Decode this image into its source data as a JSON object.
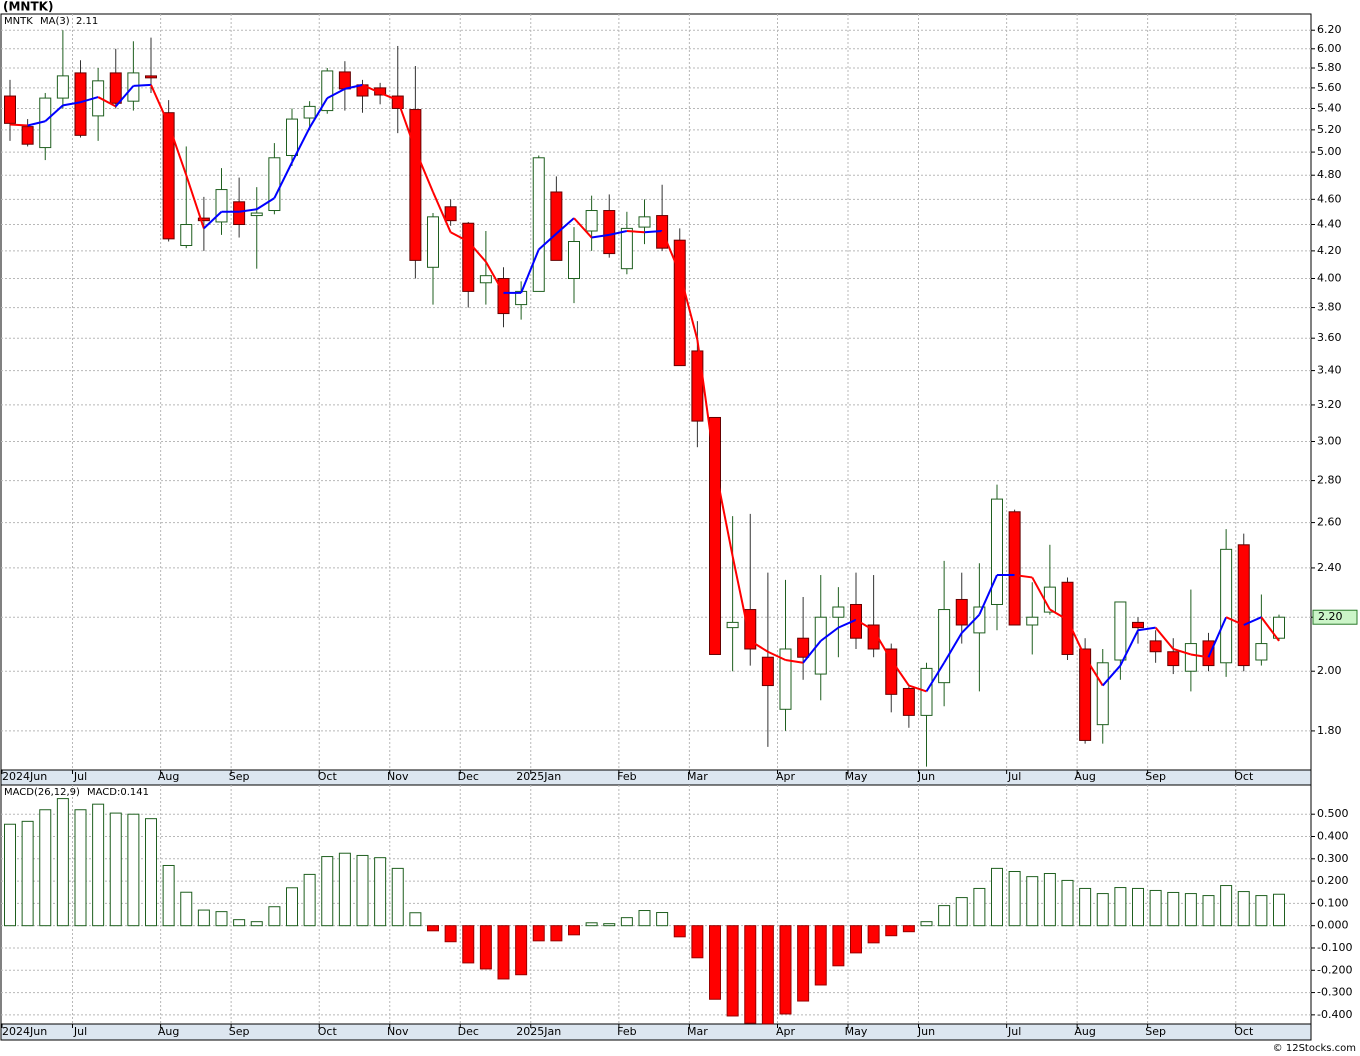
{
  "title": "(MNTK)",
  "footer": "© 12Stocks.com",
  "chart_data": [
    {
      "type": "candlestick",
      "symbol": "MNTK",
      "log_scale": true,
      "grid": true,
      "categories": [
        "2024Jun",
        null,
        null,
        null,
        "Jul",
        null,
        null,
        null,
        null,
        "Aug",
        null,
        null,
        null,
        "Sep",
        null,
        null,
        null,
        null,
        "Oct",
        null,
        null,
        null,
        "Nov",
        null,
        null,
        null,
        "Dec",
        null,
        null,
        null,
        "2025Jan",
        null,
        null,
        null,
        null,
        "Feb",
        null,
        null,
        null,
        "Mar",
        null,
        null,
        null,
        null,
        "Apr",
        null,
        null,
        null,
        "May",
        null,
        null,
        null,
        "Jun",
        null,
        null,
        null,
        null,
        "Jul",
        null,
        null,
        null,
        "Aug",
        null,
        null,
        null,
        "Sep",
        null,
        null,
        null,
        null,
        "Oct",
        null,
        null
      ],
      "open": [
        5.52,
        5.23,
        5.04,
        5.5,
        5.75,
        5.33,
        5.75,
        5.47,
        5.72,
        5.36,
        4.24,
        4.45,
        4.42,
        4.58,
        4.47,
        4.51,
        4.97,
        5.31,
        5.38,
        5.76,
        5.63,
        5.6,
        5.52,
        5.39,
        4.08,
        4.54,
        4.41,
        3.97,
        4.0,
        3.82,
        3.91,
        4.66,
        4.0,
        4.35,
        4.51,
        4.07,
        4.38,
        4.47,
        4.28,
        3.52,
        3.13,
        2.16,
        2.23,
        2.05,
        1.87,
        2.12,
        1.99,
        2.2,
        2.25,
        2.17,
        2.08,
        1.94,
        1.85,
        1.96,
        2.27,
        2.14,
        2.25,
        2.65,
        2.17,
        2.22,
        2.34,
        2.08,
        1.82,
        2.04,
        2.18,
        2.11,
        2.07,
        2.0,
        2.11,
        2.03,
        2.5,
        2.04,
        2.12
      ],
      "high": [
        5.68,
        5.3,
        5.55,
        6.2,
        5.88,
        5.8,
        6.0,
        6.08,
        6.12,
        5.48,
        5.05,
        4.62,
        4.86,
        4.78,
        4.7,
        5.08,
        5.4,
        5.47,
        5.8,
        5.87,
        5.68,
        5.65,
        6.03,
        5.82,
        4.49,
        4.6,
        4.42,
        4.35,
        4.08,
        3.98,
        4.97,
        4.79,
        4.38,
        4.63,
        4.64,
        4.5,
        4.6,
        4.72,
        4.37,
        3.71,
        3.13,
        2.63,
        2.64,
        2.38,
        2.35,
        2.28,
        2.37,
        2.32,
        2.38,
        2.37,
        2.1,
        1.95,
        2.03,
        2.43,
        2.38,
        2.42,
        2.78,
        2.66,
        2.34,
        2.5,
        2.36,
        2.12,
        2.08,
        2.26,
        2.2,
        2.15,
        2.12,
        2.31,
        2.14,
        2.57,
        2.55,
        2.29,
        2.21
      ],
      "low": [
        5.1,
        5.05,
        4.93,
        5.4,
        5.13,
        5.1,
        5.4,
        5.38,
        5.55,
        4.27,
        4.22,
        4.2,
        4.32,
        4.3,
        4.07,
        4.48,
        4.88,
        5.2,
        5.35,
        5.38,
        5.36,
        5.44,
        5.17,
        4.0,
        3.82,
        4.39,
        3.8,
        3.82,
        3.67,
        3.72,
        3.91,
        4.13,
        3.83,
        4.2,
        4.15,
        4.03,
        4.25,
        4.2,
        3.43,
        2.97,
        2.06,
        2.0,
        2.02,
        1.75,
        1.8,
        1.97,
        1.9,
        2.05,
        2.08,
        2.05,
        1.86,
        1.81,
        1.69,
        1.88,
        2.1,
        1.93,
        2.15,
        2.17,
        2.06,
        2.21,
        2.04,
        1.76,
        1.76,
        1.97,
        2.1,
        2.03,
        1.99,
        1.93,
        2.0,
        1.98,
        2.0,
        2.02,
        2.11
      ],
      "close": [
        5.26,
        5.07,
        5.5,
        5.72,
        5.15,
        5.67,
        5.45,
        5.75,
        5.7,
        4.29,
        4.4,
        4.43,
        4.68,
        4.4,
        4.49,
        4.95,
        5.3,
        5.42,
        5.77,
        5.59,
        5.52,
        5.53,
        5.4,
        4.13,
        4.46,
        4.43,
        3.91,
        4.02,
        3.76,
        3.91,
        4.95,
        4.13,
        4.27,
        4.51,
        4.18,
        4.37,
        4.46,
        4.22,
        3.43,
        3.11,
        2.06,
        2.18,
        2.08,
        1.95,
        2.08,
        2.05,
        2.2,
        2.24,
        2.12,
        2.08,
        1.92,
        1.85,
        2.01,
        2.23,
        2.17,
        2.24,
        2.71,
        2.17,
        2.2,
        2.32,
        2.06,
        1.77,
        2.03,
        2.26,
        2.16,
        2.07,
        2.02,
        2.1,
        2.02,
        2.48,
        2.02,
        2.1,
        2.2
      ],
      "up_color": "#1f5f1f",
      "down_color": "#ff0000",
      "ma": {
        "name": "MA(3)",
        "up_color": "#0000ff",
        "down_color": "#ff0000",
        "values": [
          5.25,
          5.24,
          5.28,
          5.43,
          5.46,
          5.51,
          5.42,
          5.62,
          5.63,
          5.25,
          4.8,
          4.37,
          4.5,
          4.5,
          4.52,
          4.61,
          4.91,
          5.22,
          5.5,
          5.59,
          5.63,
          5.55,
          5.48,
          5.02,
          4.66,
          4.34,
          4.27,
          4.12,
          3.9,
          3.9,
          4.21,
          4.33,
          4.45,
          4.3,
          4.32,
          4.35,
          4.34,
          4.35,
          4.04,
          3.59,
          2.87,
          2.45,
          2.11,
          2.07,
          2.04,
          2.03,
          2.11,
          2.16,
          2.19,
          2.15,
          2.04,
          1.95,
          1.93,
          2.03,
          2.14,
          2.21,
          2.37,
          2.37,
          2.36,
          2.23,
          2.19,
          2.05,
          1.95,
          2.02,
          2.15,
          2.16,
          2.08,
          2.06,
          2.05,
          2.2,
          2.17,
          2.2,
          2.11
        ]
      },
      "last_price": {
        "value": 2.2,
        "label": "2.20"
      },
      "ylim": [
        1.68,
        6.38
      ],
      "yticks": [
        {
          "value": 1.8,
          "label": "1.80"
        },
        {
          "value": 2.0,
          "label": "2.00"
        },
        {
          "value": 2.2,
          "label": "2.20"
        },
        {
          "value": 2.4,
          "label": "2.40"
        },
        {
          "value": 2.6,
          "label": "2.60"
        },
        {
          "value": 2.8,
          "label": "2.80"
        },
        {
          "value": 3.0,
          "label": "3.00"
        },
        {
          "value": 3.2,
          "label": "3.20"
        },
        {
          "value": 3.4,
          "label": "3.40"
        },
        {
          "value": 3.6,
          "label": "3.60"
        },
        {
          "value": 3.8,
          "label": "3.80"
        },
        {
          "value": 4.0,
          "label": "4.00"
        },
        {
          "value": 4.2,
          "label": "4.20"
        },
        {
          "value": 4.4,
          "label": "4.40"
        },
        {
          "value": 4.6,
          "label": "4.60"
        },
        {
          "value": 4.8,
          "label": "4.80"
        },
        {
          "value": 5.0,
          "label": "5.00"
        },
        {
          "value": 5.2,
          "label": "5.20"
        },
        {
          "value": 5.4,
          "label": "5.40"
        },
        {
          "value": 5.6,
          "label": "5.60"
        },
        {
          "value": 5.8,
          "label": "5.80"
        },
        {
          "value": 6.0,
          "label": "6.00"
        },
        {
          "value": 6.2,
          "label": "6.20"
        }
      ]
    },
    {
      "type": "bar",
      "title": "MACD(26,12,9)",
      "current_label": "MACD:0.141",
      "grid": true,
      "categories": [
        "2024Jun",
        null,
        null,
        null,
        "Jul",
        null,
        null,
        null,
        null,
        "Aug",
        null,
        null,
        null,
        "Sep",
        null,
        null,
        null,
        null,
        "Oct",
        null,
        null,
        null,
        "Nov",
        null,
        null,
        null,
        "Dec",
        null,
        null,
        null,
        "2025Jan",
        null,
        null,
        null,
        null,
        "Feb",
        null,
        null,
        null,
        "Mar",
        null,
        null,
        null,
        null,
        "Apr",
        null,
        null,
        null,
        "May",
        null,
        null,
        null,
        "Jun",
        null,
        null,
        null,
        null,
        "Jul",
        null,
        null,
        null,
        "Aug",
        null,
        null,
        null,
        "Sep",
        null,
        null,
        null,
        null,
        "Oct",
        null,
        null
      ],
      "values": [
        0.455,
        0.468,
        0.52,
        0.57,
        0.52,
        0.545,
        0.505,
        0.5,
        0.48,
        0.27,
        0.15,
        0.07,
        0.063,
        0.027,
        0.018,
        0.085,
        0.17,
        0.23,
        0.31,
        0.325,
        0.315,
        0.305,
        0.257,
        0.058,
        -0.023,
        -0.072,
        -0.167,
        -0.194,
        -0.239,
        -0.22,
        -0.068,
        -0.068,
        -0.041,
        0.013,
        0.009,
        0.036,
        0.068,
        0.059,
        -0.05,
        -0.144,
        -0.33,
        -0.405,
        -0.437,
        -0.44,
        -0.396,
        -0.338,
        -0.266,
        -0.18,
        -0.122,
        -0.077,
        -0.045,
        -0.027,
        0.018,
        0.09,
        0.126,
        0.167,
        0.257,
        0.243,
        0.22,
        0.234,
        0.203,
        0.167,
        0.144,
        0.171,
        0.167,
        0.158,
        0.149,
        0.144,
        0.135,
        0.18,
        0.153,
        0.135,
        0.141
      ],
      "up_color": "#1f5f1f",
      "down_color": "#ff0000",
      "ylim": [
        -0.441,
        0.631
      ],
      "yticks": [
        {
          "value": -0.4,
          "label": "-0.400"
        },
        {
          "value": -0.3,
          "label": "-0.300"
        },
        {
          "value": -0.2,
          "label": "-0.200"
        },
        {
          "value": -0.1,
          "label": "-0.100"
        },
        {
          "value": 0,
          "label": "0.000"
        },
        {
          "value": 0.1,
          "label": "0.100"
        },
        {
          "value": 0.2,
          "label": "0.200"
        },
        {
          "value": 0.3,
          "label": "0.300"
        },
        {
          "value": 0.4,
          "label": "0.400"
        },
        {
          "value": 0.5,
          "label": "0.500"
        }
      ]
    }
  ]
}
